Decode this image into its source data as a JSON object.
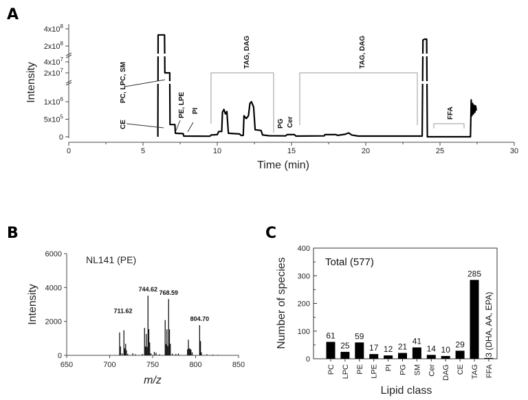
{
  "chart_data": [
    {
      "panel": "A",
      "type": "line",
      "xlabel": "Time (min)",
      "ylabel": "Intensity",
      "xlim": [
        0,
        30
      ],
      "xticks": [
        "0",
        "5",
        "10",
        "15",
        "20",
        "25",
        "30"
      ],
      "y_scale": "broken axis (three segments)",
      "yticks": [
        {
          "base": "0",
          "exp": "",
          "value": 0
        },
        {
          "base": "5x10",
          "exp": "5",
          "value": 500000
        },
        {
          "base": "1x10",
          "exp": "6",
          "value": 1000000
        },
        {
          "base": "2x10",
          "exp": "7",
          "value": 20000000
        },
        {
          "base": "4x10",
          "exp": "7",
          "value": 40000000
        },
        {
          "base": "2x10",
          "exp": "8",
          "value": 200000000
        },
        {
          "base": "4x10",
          "exp": "8",
          "value": 400000000
        }
      ],
      "trace": [
        [
          6.0,
          0
        ],
        [
          6.02,
          330000000
        ],
        [
          6.45,
          330000000
        ],
        [
          6.47,
          20000000
        ],
        [
          6.8,
          20000000
        ],
        [
          6.82,
          350000
        ],
        [
          7.15,
          350000
        ],
        [
          7.18,
          100000
        ],
        [
          7.7,
          90000
        ],
        [
          7.75,
          20000
        ],
        [
          9.5,
          15000
        ],
        [
          9.6,
          50000
        ],
        [
          10.0,
          60000
        ],
        [
          10.1,
          150000
        ],
        [
          10.3,
          150000
        ],
        [
          10.35,
          700000
        ],
        [
          10.45,
          780000
        ],
        [
          10.55,
          650000
        ],
        [
          10.65,
          720000
        ],
        [
          10.75,
          100000
        ],
        [
          11.5,
          80000
        ],
        [
          11.6,
          40000
        ],
        [
          11.75,
          40000
        ],
        [
          11.8,
          600000
        ],
        [
          11.95,
          520000
        ],
        [
          12.1,
          600000
        ],
        [
          12.2,
          950000
        ],
        [
          12.3,
          1000000
        ],
        [
          12.45,
          850000
        ],
        [
          12.55,
          200000
        ],
        [
          12.95,
          180000
        ],
        [
          13.05,
          50000
        ],
        [
          13.5,
          30000
        ],
        [
          14.6,
          25000
        ],
        [
          14.7,
          60000
        ],
        [
          15.2,
          60000
        ],
        [
          15.3,
          20000
        ],
        [
          17.2,
          25000
        ],
        [
          17.25,
          60000
        ],
        [
          18.0,
          60000
        ],
        [
          18.1,
          40000
        ],
        [
          18.6,
          70000
        ],
        [
          18.85,
          110000
        ],
        [
          19.05,
          50000
        ],
        [
          19.5,
          20000
        ],
        [
          23.8,
          20000
        ],
        [
          23.85,
          270000000
        ],
        [
          23.95,
          280000000
        ],
        [
          24.1,
          280000000
        ],
        [
          24.15,
          0
        ],
        [
          27.05,
          0
        ],
        [
          27.1,
          1050000
        ],
        [
          27.15,
          600000
        ],
        [
          27.2,
          950000
        ],
        [
          27.25,
          650000
        ],
        [
          27.3,
          900000
        ],
        [
          27.35,
          700000
        ],
        [
          27.4,
          880000
        ],
        [
          27.45,
          750000
        ]
      ],
      "annotations": [
        {
          "label": "PC, LPC, SM",
          "time": 6.4
        },
        {
          "label": "CE",
          "time": 6.4
        },
        {
          "label": "PE, LPE",
          "time": 7.2
        },
        {
          "label": "PI",
          "time": 8.0
        },
        {
          "label": "TAG, DAG",
          "range": [
            9.6,
            13.8
          ]
        },
        {
          "label": "PG",
          "time": 14.5
        },
        {
          "label": "Cer",
          "time": 15.0
        },
        {
          "label": "TAG, DAG",
          "range": [
            15.5,
            23.5
          ]
        },
        {
          "label": "FFA",
          "range": [
            24.6,
            26.7
          ]
        }
      ]
    },
    {
      "panel": "B",
      "type": "bar",
      "title": "NL141 (PE)",
      "xlabel": "m/z",
      "ylabel": "Intensity",
      "xlim": [
        650,
        850
      ],
      "ylim": [
        0,
        6000
      ],
      "xticks": [
        "650",
        "700",
        "750",
        "800",
        "850"
      ],
      "yticks": [
        "0",
        "2000",
        "4000",
        "6000"
      ],
      "peaks": [
        [
          711.6,
          1350
        ],
        [
          712.6,
          520
        ],
        [
          714.5,
          120
        ],
        [
          716.6,
          1480
        ],
        [
          717.6,
          420
        ],
        [
          718.6,
          680
        ],
        [
          719.5,
          300
        ],
        [
          721,
          80
        ],
        [
          727,
          120
        ],
        [
          730,
          60
        ],
        [
          738,
          80
        ],
        [
          740.6,
          1620
        ],
        [
          741.6,
          520
        ],
        [
          742.6,
          1260
        ],
        [
          743.6,
          500
        ],
        [
          744.62,
          3520
        ],
        [
          745.6,
          1540
        ],
        [
          746.6,
          760
        ],
        [
          748,
          120
        ],
        [
          752,
          200
        ],
        [
          754,
          150
        ],
        [
          758,
          60
        ],
        [
          764.6,
          2080
        ],
        [
          765.6,
          660
        ],
        [
          766.6,
          1530
        ],
        [
          767.6,
          550
        ],
        [
          768.59,
          3320
        ],
        [
          769.6,
          1530
        ],
        [
          770.6,
          680
        ],
        [
          773,
          100
        ],
        [
          777,
          80
        ],
        [
          780,
          110
        ],
        [
          790.6,
          350
        ],
        [
          791.6,
          920
        ],
        [
          792.6,
          420
        ],
        [
          793.6,
          380
        ],
        [
          794.6,
          340
        ],
        [
          796,
          180
        ],
        [
          804.7,
          1780
        ],
        [
          805.7,
          840
        ],
        [
          806.7,
          180
        ],
        [
          813,
          60
        ],
        [
          820,
          40
        ],
        [
          826,
          30
        ]
      ],
      "peak_labels": [
        {
          "mz": 711.62,
          "text": "711.62"
        },
        {
          "mz": 744.62,
          "text": "744.62"
        },
        {
          "mz": 768.59,
          "text": "768.59"
        },
        {
          "mz": 804.7,
          "text": "804.70"
        }
      ]
    },
    {
      "panel": "C",
      "type": "bar",
      "xlabel": "Lipid class",
      "ylabel": "Number of species",
      "annotation": "Total (577)",
      "ylim": [
        0,
        400
      ],
      "yticks": [
        "0",
        "100",
        "200",
        "300",
        "400"
      ],
      "categories": [
        "PC",
        "LPC",
        "PE",
        "LPE",
        "PI",
        "PG",
        "SM",
        "Cer",
        "DAG",
        "CE",
        "TAG",
        "FFA"
      ],
      "values": [
        61,
        25,
        59,
        17,
        12,
        21,
        41,
        14,
        10,
        29,
        285,
        3
      ],
      "data_labels": [
        "61",
        "25",
        "59",
        "17",
        "12",
        "21",
        "41",
        "14",
        "10",
        "29",
        "285",
        "3 (DHA, AA, EPA)"
      ],
      "bar_color": "#000000"
    }
  ],
  "panels": {
    "a": "A",
    "b": "B",
    "c": "C"
  }
}
